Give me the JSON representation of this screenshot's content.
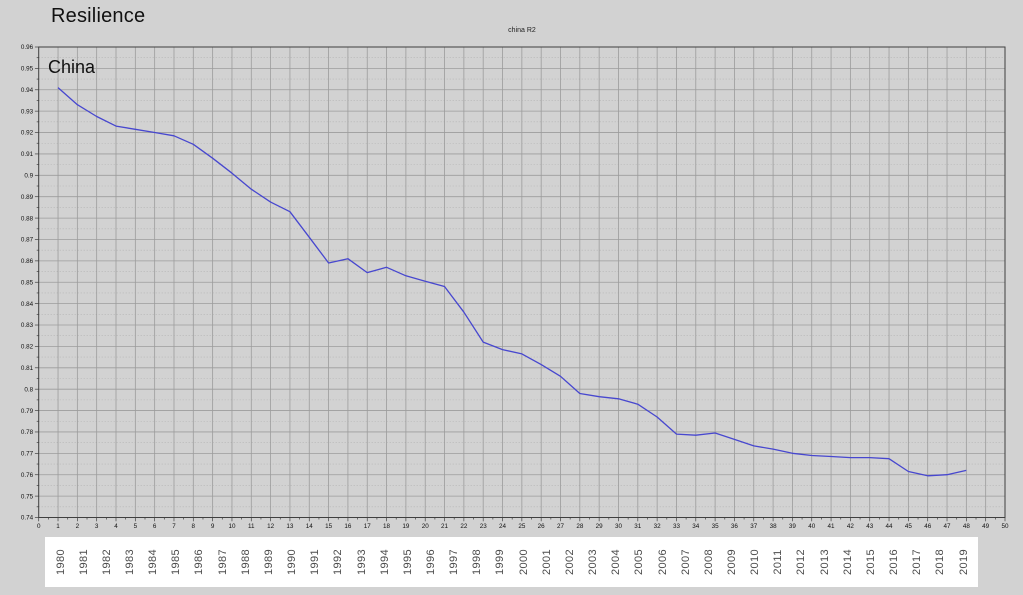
{
  "page": {
    "header": "Resilience"
  },
  "chart": {
    "title": "china R2",
    "annotation": "China",
    "line_color": "#4747cf",
    "grid_major_color": "#9c9c9c",
    "grid_minor_color": "#ababab",
    "frame_color": "#3f3f3f",
    "tick_label_color": "#111111",
    "background_color": "#d2d2d2"
  },
  "chart_data": {
    "type": "line",
    "title": "china R2",
    "xlabel": "",
    "ylabel": "",
    "xlim": [
      0,
      50
    ],
    "ylim": [
      0.74,
      0.96
    ],
    "grid": "on",
    "legend": "none",
    "x_tick_labels": [
      "0",
      "1",
      "2",
      "3",
      "4",
      "5",
      "6",
      "7",
      "8",
      "9",
      "10",
      "11",
      "12",
      "13",
      "14",
      "15",
      "16",
      "17",
      "18",
      "19",
      "20",
      "21",
      "22",
      "23",
      "24",
      "25",
      "26",
      "27",
      "28",
      "29",
      "30",
      "31",
      "32",
      "33",
      "34",
      "35",
      "36",
      "37",
      "38",
      "39",
      "40",
      "41",
      "42",
      "43",
      "44",
      "45",
      "46",
      "47",
      "48",
      "49",
      "50"
    ],
    "y_tick_labels": [
      "0.96",
      "0.95",
      "0.94",
      "0.93",
      "0.92",
      "0.91",
      "0.9",
      "0.89",
      "0.88",
      "0.87",
      "0.86",
      "0.85",
      "0.84",
      "0.83",
      "0.82",
      "0.81",
      "0.8",
      "0.79",
      "0.78",
      "0.77",
      "0.76",
      "0.75",
      "0.74"
    ],
    "series": [
      {
        "name": "china R2",
        "x": [
          1,
          2,
          3,
          4,
          5,
          6,
          7,
          8,
          9,
          10,
          11,
          12,
          13,
          14,
          15,
          16,
          17,
          18,
          19,
          20,
          21,
          22,
          23,
          24,
          25,
          26,
          27,
          28,
          29,
          30,
          31,
          32,
          33,
          34,
          35,
          36,
          37,
          38,
          39,
          40,
          41,
          42,
          43,
          44,
          45,
          46,
          47,
          48
        ],
        "values": [
          0.941,
          0.933,
          0.9275,
          0.923,
          0.9215,
          0.92,
          0.9185,
          0.9145,
          0.908,
          0.901,
          0.8935,
          0.8875,
          0.883,
          0.871,
          0.859,
          0.861,
          0.8545,
          0.857,
          0.853,
          0.8505,
          0.848,
          0.836,
          0.822,
          0.8185,
          0.8165,
          0.8115,
          0.806,
          0.798,
          0.7965,
          0.7955,
          0.793,
          0.787,
          0.779,
          0.7785,
          0.7795,
          0.7765,
          0.7735,
          0.772,
          0.77,
          0.769,
          0.7685,
          0.768,
          0.768,
          0.7675,
          0.7615,
          0.7595,
          0.76,
          0.762
        ]
      }
    ]
  },
  "year_axis": {
    "labels": [
      "1980",
      "1981",
      "1982",
      "1983",
      "1984",
      "1985",
      "1986",
      "1987",
      "1988",
      "1989",
      "1990",
      "1991",
      "1992",
      "1993",
      "1994",
      "1995",
      "1996",
      "1997",
      "1998",
      "1999",
      "2000",
      "2001",
      "2002",
      "2003",
      "2004",
      "2005",
      "2006",
      "2007",
      "2008",
      "2009",
      "2010",
      "2011",
      "2012",
      "2013",
      "2014",
      "2015",
      "2016",
      "2017",
      "2018",
      "2019"
    ]
  }
}
